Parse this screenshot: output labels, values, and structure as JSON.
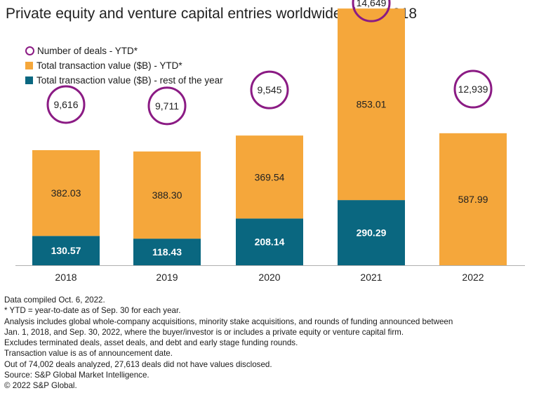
{
  "title": "Private equity and venture capital entries worldwide since 2018",
  "legend": {
    "deals": "Number of deals - YTD*",
    "ytd": "Total transaction value ($B) - YTD*",
    "rest": "Total transaction value ($B) - rest of the year"
  },
  "colors": {
    "ytd": "#f5a73b",
    "rest": "#0a6780",
    "circle": "#8b1b84",
    "axis": "#b0b0b0"
  },
  "chart_data": {
    "type": "bar",
    "stacked": true,
    "categories": [
      "2018",
      "2019",
      "2020",
      "2021",
      "2022"
    ],
    "series": [
      {
        "name": "Total transaction value ($B) - rest of the year",
        "values": [
          130.57,
          118.43,
          208.14,
          290.29,
          null
        ],
        "labels": [
          "130.57",
          "118.43",
          "208.14",
          "290.29",
          ""
        ]
      },
      {
        "name": "Total transaction value ($B) - YTD*",
        "values": [
          382.03,
          388.3,
          369.54,
          853.01,
          587.99
        ],
        "labels": [
          "382.03",
          "388.30",
          "369.54",
          "853.01",
          "587.99"
        ]
      },
      {
        "name": "Number of deals - YTD*",
        "values": [
          9616,
          9711,
          9545,
          14649,
          12939
        ],
        "labels": [
          "9,616",
          "9,711",
          "9,545",
          "14,649",
          "12,939"
        ]
      }
    ],
    "legend_position": "top-left",
    "grid": false
  },
  "notes": [
    "Data compiled Oct. 6, 2022.",
    "* YTD = year-to-date as of Sep. 30 for each year.",
    "Analysis includes global whole-company acquisitions, minority stake acquisitions, and rounds of funding announced between",
    "Jan. 1, 2018, and Sep. 30, 2022, where the buyer/investor is or includes a private equity or venture capital firm.",
    "Excludes terminated deals, asset deals, and debt and early stage funding rounds.",
    "Transaction value is as of announcement date.",
    "Out of 74,002  deals analyzed, 27,613 deals did not have values disclosed.",
    "Source: S&P Global Market Intelligence.",
    "© 2022 S&P Global."
  ]
}
